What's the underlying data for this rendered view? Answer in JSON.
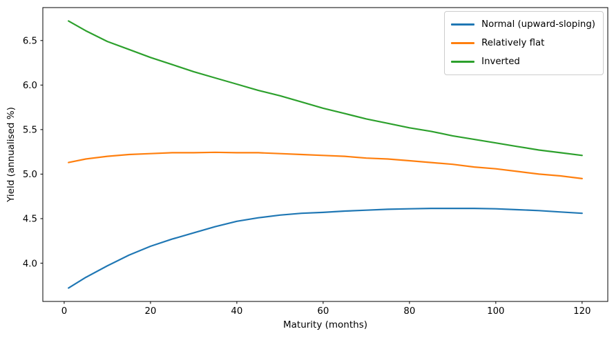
{
  "figure": {
    "background": "#ffffff",
    "frame_color": "#000000",
    "text_color": "#000000"
  },
  "chart_data": {
    "type": "line",
    "title": "",
    "xlabel": "Maturity (months)",
    "ylabel": "Yield (annualised %)",
    "grid": false,
    "legend_position": "upper right",
    "xlim": [
      -4.95,
      125.95
    ],
    "ylim": [
      3.57,
      6.87
    ],
    "xticks": {
      "values": [
        0,
        20,
        40,
        60,
        80,
        100,
        120
      ],
      "labels": [
        "0",
        "20",
        "40",
        "60",
        "80",
        "100",
        "120"
      ]
    },
    "yticks": {
      "values": [
        4.0,
        4.5,
        5.0,
        5.5,
        6.0,
        6.5
      ],
      "labels": [
        "4.0",
        "4.5",
        "5.0",
        "5.5",
        "6.0",
        "6.5"
      ]
    },
    "x": [
      1,
      5,
      10,
      15,
      20,
      25,
      30,
      35,
      40,
      45,
      50,
      55,
      60,
      65,
      70,
      75,
      80,
      85,
      90,
      95,
      100,
      105,
      110,
      115,
      120
    ],
    "series": [
      {
        "name": "Normal (upward-sloping)",
        "color": "#1f77b4",
        "values": [
          3.72,
          3.84,
          3.97,
          4.09,
          4.19,
          4.27,
          4.34,
          4.41,
          4.47,
          4.51,
          4.54,
          4.56,
          4.57,
          4.585,
          4.595,
          4.605,
          4.61,
          4.615,
          4.615,
          4.615,
          4.61,
          4.6,
          4.59,
          4.575,
          4.56
        ]
      },
      {
        "name": "Relatively flat",
        "color": "#ff7f0e",
        "values": [
          5.13,
          5.17,
          5.2,
          5.22,
          5.23,
          5.24,
          5.24,
          5.245,
          5.24,
          5.24,
          5.23,
          5.22,
          5.21,
          5.2,
          5.18,
          5.17,
          5.15,
          5.13,
          5.11,
          5.08,
          5.06,
          5.03,
          5.0,
          4.98,
          4.95
        ]
      },
      {
        "name": "Inverted",
        "color": "#2ca02c",
        "values": [
          6.72,
          6.61,
          6.49,
          6.4,
          6.31,
          6.23,
          6.15,
          6.08,
          6.01,
          5.94,
          5.88,
          5.81,
          5.74,
          5.68,
          5.62,
          5.57,
          5.52,
          5.48,
          5.43,
          5.39,
          5.35,
          5.31,
          5.27,
          5.24,
          5.21
        ]
      }
    ]
  }
}
